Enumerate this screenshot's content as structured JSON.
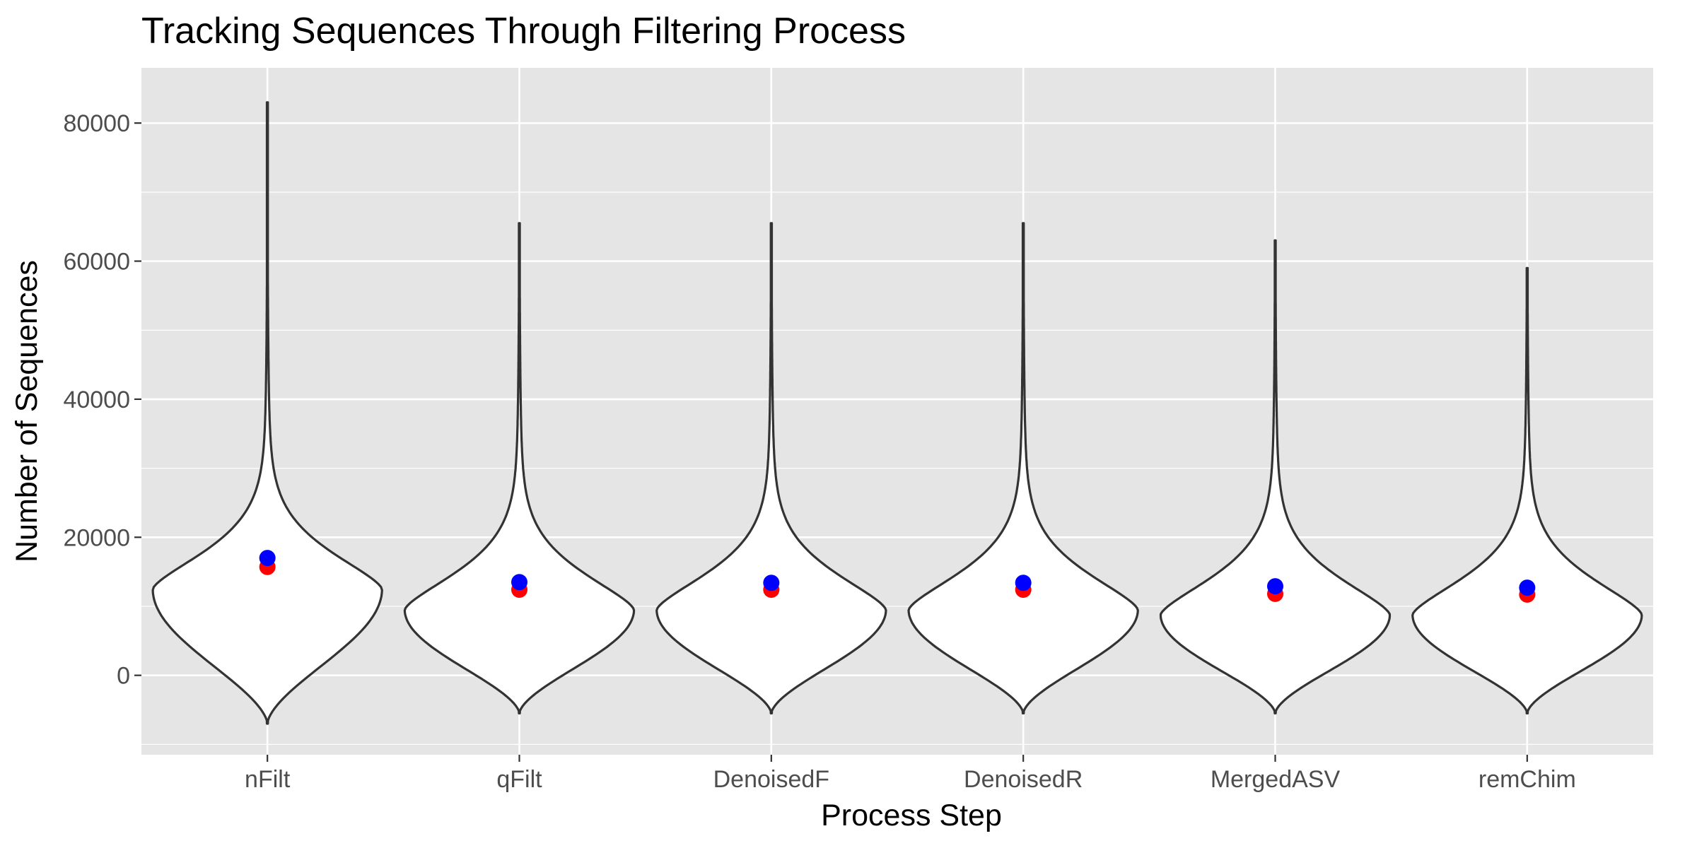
{
  "chart_data": {
    "type": "violin",
    "title": "Tracking Sequences Through Filtering Process",
    "xlabel": "Process Step",
    "ylabel": "Number of Sequences",
    "ylim": [
      -11500,
      88000
    ],
    "y_ticks": [
      0,
      20000,
      40000,
      60000,
      80000
    ],
    "y_tick_labels": [
      "0",
      "20000",
      "40000",
      "60000",
      "80000"
    ],
    "categories": [
      "nFilt",
      "qFilt",
      "DenoisedF",
      "DenoisedR",
      "MergedASV",
      "remChim"
    ],
    "grid": true,
    "series": [
      {
        "name": "",
        "color": "#ff0000",
        "values": [
          15700,
          12400,
          12400,
          12400,
          11800,
          11700
        ]
      },
      {
        "name": "",
        "color": "#0000ff",
        "values": [
          17000,
          13500,
          13400,
          13400,
          12900,
          12700
        ]
      }
    ],
    "violin_range": [
      {
        "min": -7000,
        "max": 83000
      },
      {
        "min": -5500,
        "max": 65500
      },
      {
        "min": -5500,
        "max": 65500
      },
      {
        "min": -5500,
        "max": 65500
      },
      {
        "min": -5500,
        "max": 63000
      },
      {
        "min": -5500,
        "max": 59000
      }
    ],
    "violin_peak": [
      12500,
      9500,
      9500,
      9500,
      8800,
      8800
    ],
    "colors": {
      "panel": "#e5e5e5",
      "grid": "#ffffff",
      "violin_fill": "#ffffff",
      "violin_outline": "#333333"
    }
  }
}
